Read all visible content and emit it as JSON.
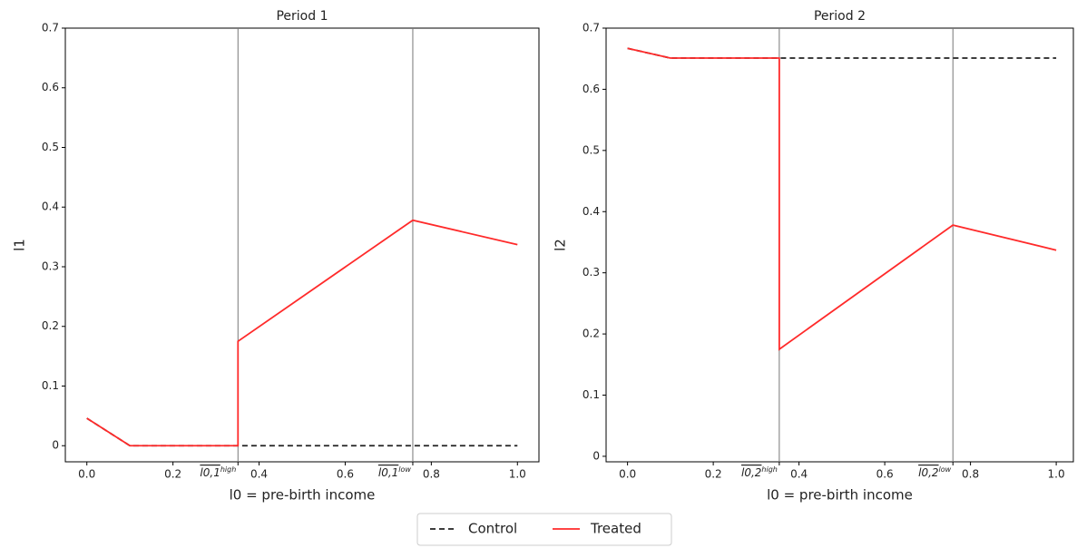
{
  "chart_data": [
    {
      "type": "line",
      "title": "Period 1",
      "xlabel": "l0 = pre-birth income",
      "ylabel": "l1",
      "xlim": [
        -0.05,
        1.05
      ],
      "ylim": [
        -0.027,
        0.7
      ],
      "xticks": [
        {
          "value": 0,
          "label": "0.0"
        },
        0.2,
        {
          "value": 0.351,
          "label": "l0,1",
          "sup": "high"
        },
        0.4,
        0.6,
        {
          "value": 0.757,
          "label": "l0,1",
          "sup": "low"
        },
        0.8,
        {
          "value": 1,
          "label": "1.0"
        }
      ],
      "yticks": [
        0,
        0.1,
        0.2,
        0.3,
        0.4,
        0.5,
        0.6,
        0.7
      ],
      "series": [
        {
          "name": "Control",
          "color": "#222222",
          "dash": true,
          "x": [
            0,
            0.1,
            0.351,
            1
          ],
          "values": [
            0.046,
            0,
            0,
            0
          ]
        },
        {
          "name": "Treated",
          "color": "#ff2a2a",
          "dash": false,
          "x": [
            0,
            0.1,
            0.351,
            0.351,
            0.757,
            1
          ],
          "values": [
            0.046,
            0,
            0,
            0.175,
            0.378,
            0.337
          ]
        }
      ]
    },
    {
      "type": "line",
      "title": "Period 2",
      "xlabel": "l0 = pre-birth income",
      "ylabel": "l2",
      "xlim": [
        -0.05,
        1.04
      ],
      "ylim": [
        -0.009,
        0.7
      ],
      "xticks": [
        {
          "value": 0,
          "label": "0.0"
        },
        0.2,
        {
          "value": 0.354,
          "label": "l0,2",
          "sup": "high"
        },
        0.4,
        0.6,
        {
          "value": 0.759,
          "label": "l0,2",
          "sup": "low"
        },
        0.8,
        {
          "value": 1,
          "label": "1.0"
        }
      ],
      "yticks": [
        0,
        0.1,
        0.2,
        0.3,
        0.4,
        0.5,
        0.6,
        0.7
      ],
      "series": [
        {
          "name": "Control",
          "color": "#222222",
          "dash": true,
          "x": [
            0,
            0.1,
            1
          ],
          "values": [
            0.667,
            0.651,
            0.651
          ]
        },
        {
          "name": "Treated",
          "color": "#ff2a2a",
          "dash": false,
          "x": [
            0,
            0.1,
            0.354,
            0.354,
            0.759,
            1
          ],
          "values": [
            0.667,
            0.651,
            0.651,
            0.175,
            0.378,
            0.337
          ]
        }
      ]
    }
  ]
}
